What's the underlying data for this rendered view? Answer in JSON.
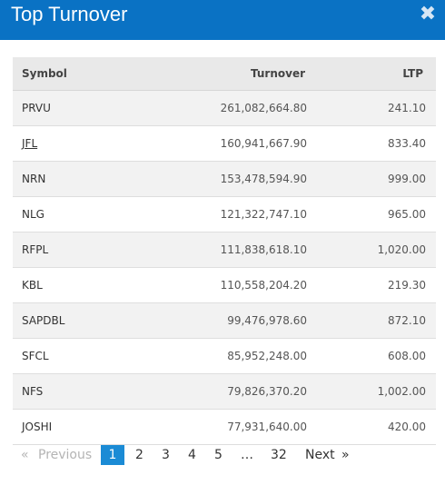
{
  "modal": {
    "title": "Top Turnover",
    "close_glyph": "✖"
  },
  "table": {
    "headers": {
      "symbol": "Symbol",
      "turnover": "Turnover",
      "ltp": "LTP"
    },
    "rows": [
      {
        "symbol": "PRVU",
        "turnover": "261,082,664.80",
        "ltp": "241.10"
      },
      {
        "symbol": "JFL",
        "turnover": "160,941,667.90",
        "ltp": "833.40"
      },
      {
        "symbol": "NRN",
        "turnover": "153,478,594.90",
        "ltp": "999.00"
      },
      {
        "symbol": "NLG",
        "turnover": "121,322,747.10",
        "ltp": "965.00"
      },
      {
        "symbol": "RFPL",
        "turnover": "111,838,618.10",
        "ltp": "1,020.00"
      },
      {
        "symbol": "KBL",
        "turnover": "110,558,204.20",
        "ltp": "219.30"
      },
      {
        "symbol": "SAPDBL",
        "turnover": "99,476,978.60",
        "ltp": "872.10"
      },
      {
        "symbol": "SFCL",
        "turnover": "85,952,248.00",
        "ltp": "608.00"
      },
      {
        "symbol": "NFS",
        "turnover": "79,826,370.20",
        "ltp": "1,002.00"
      },
      {
        "symbol": "JOSHI",
        "turnover": "77,931,640.00",
        "ltp": "420.00"
      }
    ]
  },
  "pagination": {
    "first_glyph": "«",
    "previous": "Previous",
    "pages": [
      "1",
      "2",
      "3",
      "4",
      "5"
    ],
    "ellipsis": "…",
    "last_page": "32",
    "next": "Next",
    "last_glyph": "»",
    "current": "1"
  },
  "colors": {
    "header": "#0a72c4",
    "active_page": "#1b8bd5"
  }
}
